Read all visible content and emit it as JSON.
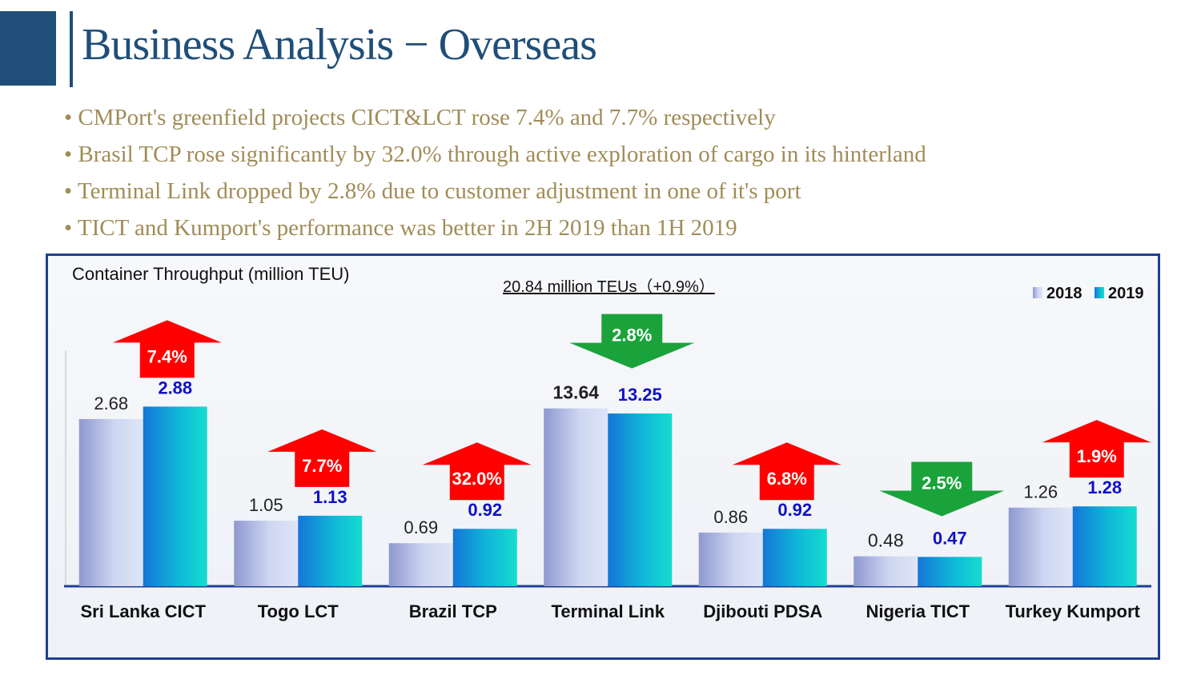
{
  "header": {
    "title": "Business Analysis  −  Overseas"
  },
  "bullets": [
    "CMPort's greenfield projects CICT&LCT rose 7.4% and 7.7% respectively",
    "Brasil TCP rose significantly by 32.0% through active exploration of cargo in its hinterland",
    "Terminal Link dropped by 2.8% due to customer adjustment in one of it's port",
    "TICT and Kumport's performance was better in 2H 2019 than 1H 2019"
  ],
  "chart_data": {
    "type": "bar",
    "title": "Container Throughput (million TEU)",
    "subtitle": "20.84 million TEUs（+0.9%）",
    "categories": [
      "Sri Lanka CICT",
      "Togo LCT",
      "Brazil TCP",
      "Terminal Link",
      "Djibouti PDSA",
      "Nigeria TICT",
      "Turkey Kumport"
    ],
    "series": [
      {
        "name": "2018",
        "values": [
          2.68,
          1.05,
          0.69,
          13.64,
          0.86,
          0.48,
          1.26
        ],
        "labels": [
          "2.68",
          "1.05",
          "0.69",
          "13.64",
          "0.86",
          "0.48",
          "1.26"
        ]
      },
      {
        "name": "2019",
        "values": [
          2.88,
          1.13,
          0.92,
          13.25,
          0.92,
          0.47,
          1.28
        ],
        "labels": [
          "2.88",
          "1.13",
          "0.92",
          "13.25",
          "0.92",
          "0.47",
          "1.28"
        ]
      }
    ],
    "changes": [
      {
        "label": "7.4%",
        "direction": "up"
      },
      {
        "label": "7.7%",
        "direction": "up"
      },
      {
        "label": "32.0%",
        "direction": "up"
      },
      {
        "label": "2.8%",
        "direction": "down"
      },
      {
        "label": "6.8%",
        "direction": "up"
      },
      {
        "label": "2.5%",
        "direction": "down"
      },
      {
        "label": "1.9%",
        "direction": "up"
      }
    ],
    "legend_position": "top-right",
    "colors": {
      "up": "#ff0000",
      "down": "#1aa33a",
      "label_2018": "#222222",
      "label_2019": "#1010c8",
      "series_2018": "#b8c2e6",
      "series_2019": "#17b6d6",
      "title": "#1f4e79"
    }
  }
}
